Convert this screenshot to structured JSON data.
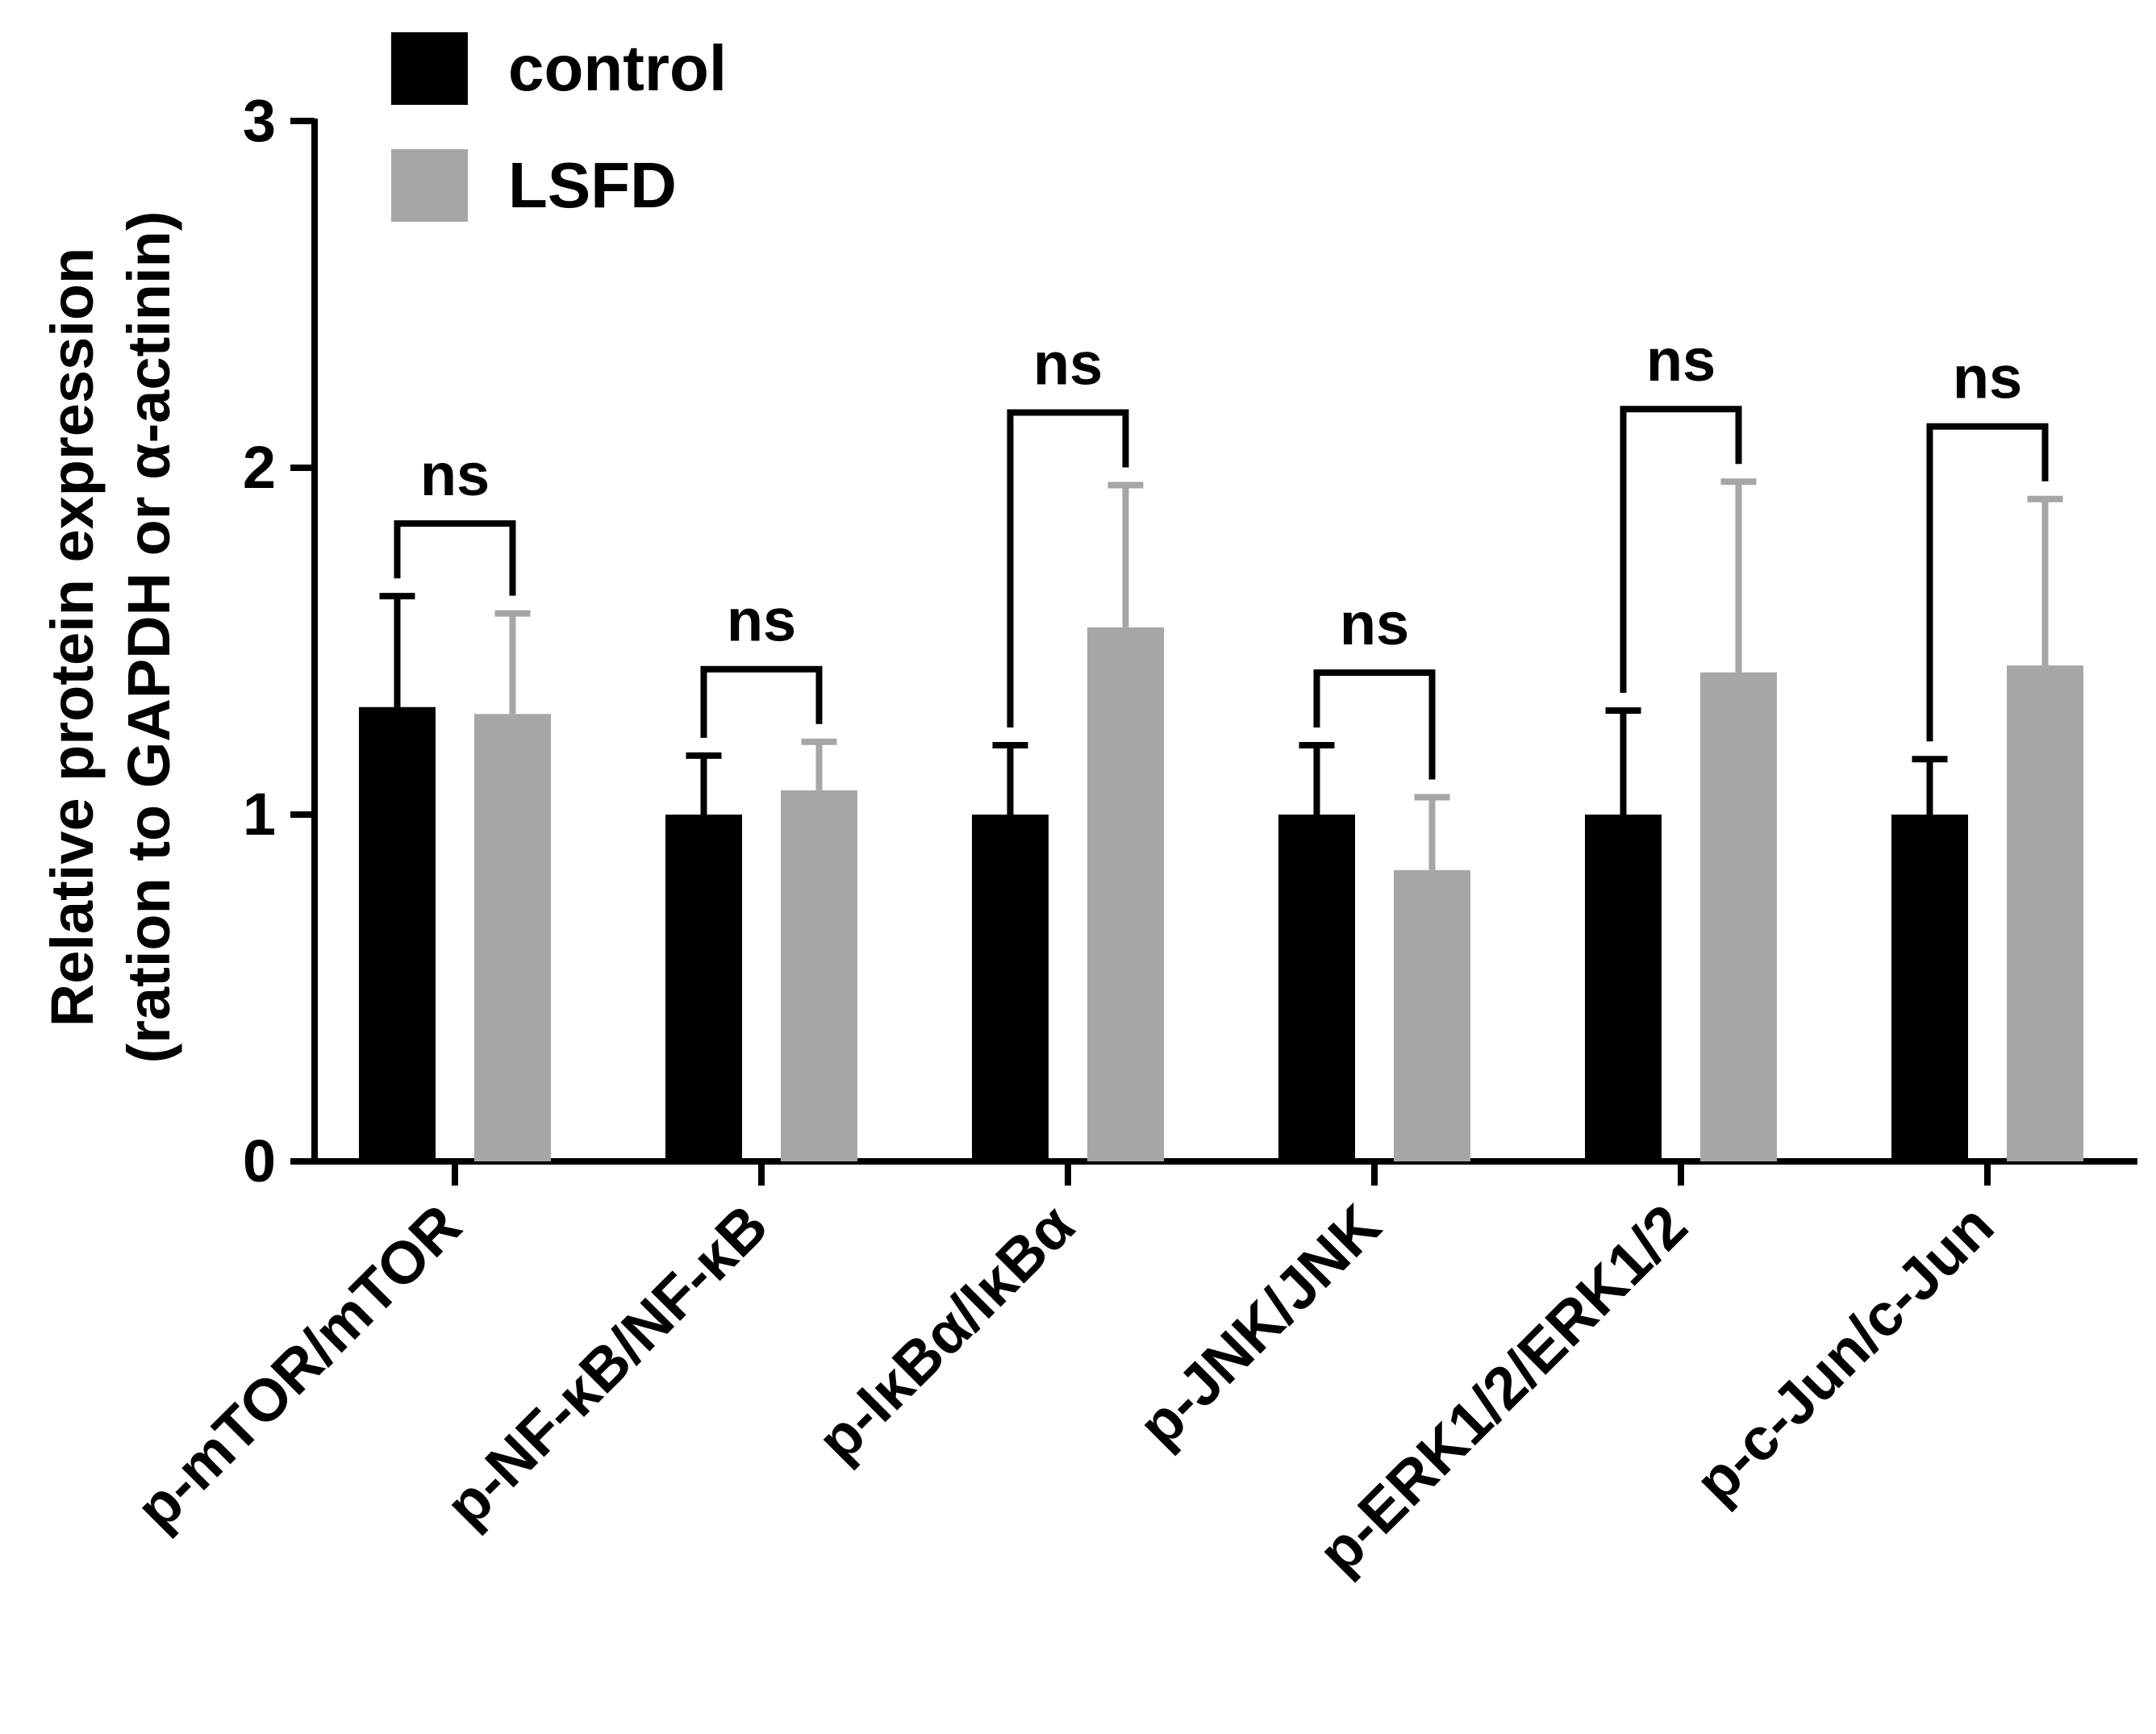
{
  "chart_data": {
    "type": "bar",
    "title": "",
    "xlabel": "",
    "ylabel": [
      "Relative protein expression",
      "(ration to GAPDH or α-actinin)"
    ],
    "ylim": [
      0,
      3
    ],
    "yticks": [
      "0",
      "1",
      "2",
      "3"
    ],
    "categories": [
      "p-mTOR/mTOR",
      "p-NF-κB/NF-κB",
      "p-IκBα/IκBα",
      "p-JNK/JNK",
      "p-ERK1/2/ERK1/2",
      "p-c-Jun/c-Jun"
    ],
    "series": [
      {
        "name": "control",
        "color": "#000000",
        "values": [
          1.31,
          1.0,
          1.0,
          1.0,
          1.0,
          1.0
        ],
        "error": [
          0.32,
          0.17,
          0.2,
          0.2,
          0.3,
          0.16
        ]
      },
      {
        "name": "LSFD",
        "color": "#a6a6a8",
        "values": [
          1.29,
          1.07,
          1.54,
          0.84,
          1.41,
          1.43
        ],
        "error": [
          0.29,
          0.14,
          0.41,
          0.21,
          0.55,
          0.48
        ]
      }
    ],
    "annotations": [
      "ns",
      "ns",
      "ns",
      "ns",
      "ns",
      "ns"
    ],
    "legend_position": "top-left"
  }
}
